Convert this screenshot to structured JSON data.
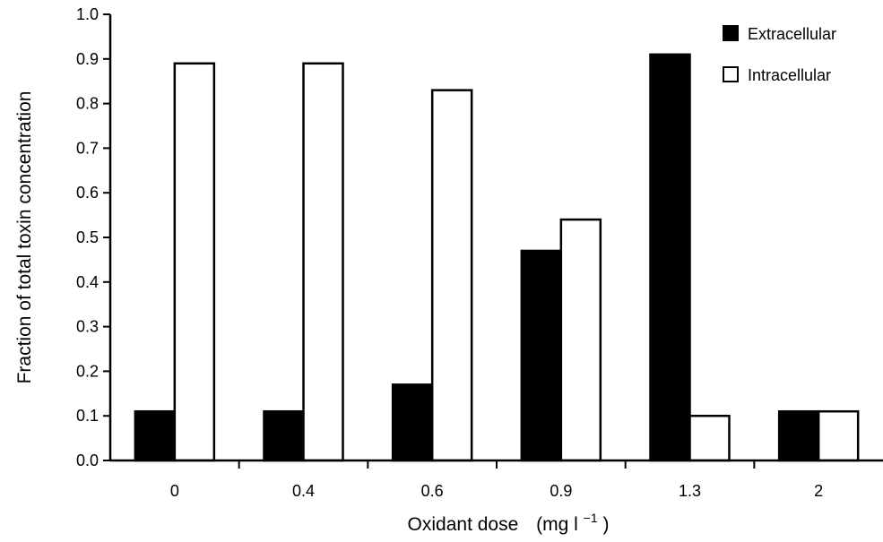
{
  "chart_data": {
    "type": "bar",
    "title": "",
    "xlabel": "Oxidant dose",
    "xlabel_unit_prefix": "(mg l",
    "xlabel_unit_sup": "−1",
    "xlabel_unit_suffix": ")",
    "ylabel": "Fraction of total toxin concentration",
    "ylim": [
      0,
      1.0
    ],
    "yticks": [
      "0.0",
      "0.1",
      "0.2",
      "0.3",
      "0.4",
      "0.5",
      "0.6",
      "0.7",
      "0.8",
      "0.9",
      "1.0"
    ],
    "categories": [
      "0",
      "0.4",
      "0.6",
      "0.9",
      "1.3",
      "2"
    ],
    "series": [
      {
        "name": "Extracellular",
        "color": "#000000",
        "values": [
          0.11,
          0.11,
          0.17,
          0.47,
          0.91,
          0.11
        ]
      },
      {
        "name": "Intracellular",
        "color": "#ffffff",
        "values": [
          0.89,
          0.89,
          0.83,
          0.54,
          0.1,
          0.11
        ]
      }
    ],
    "legend_position": "top-right",
    "grid": false
  }
}
